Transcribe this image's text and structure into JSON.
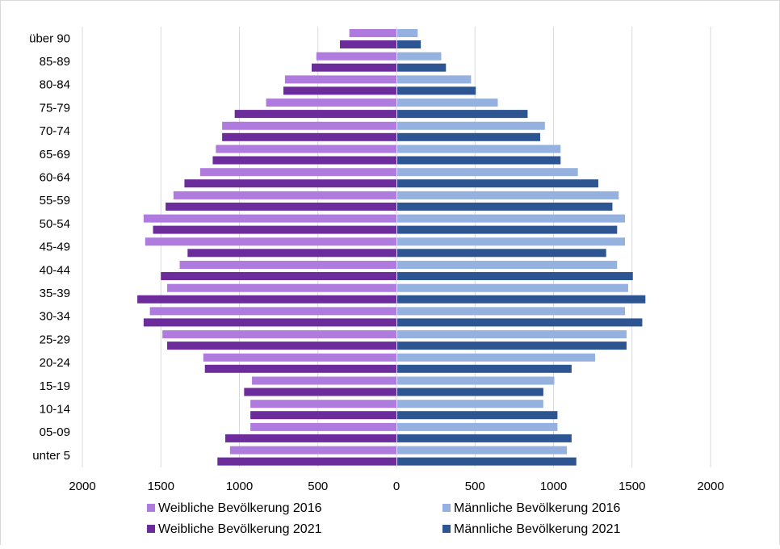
{
  "chart_data": {
    "type": "bar",
    "orientation": "horizontal-population-pyramid",
    "categories": [
      "über 90",
      "85-89",
      "80-84",
      "75-79",
      "70-74",
      "65-69",
      "60-64",
      "55-59",
      "50-54",
      "45-49",
      "40-44",
      "35-39",
      "30-34",
      "25-29",
      "20-24",
      "15-19",
      "10-14",
      "05-09",
      "unter 5"
    ],
    "series": [
      {
        "name": "Weibliche Bevölkerung 2016",
        "side": "left",
        "color": "#b07bde",
        "values": [
          300,
          510,
          710,
          830,
          1110,
          1150,
          1250,
          1420,
          1610,
          1600,
          1380,
          1460,
          1570,
          1490,
          1230,
          920,
          930,
          930,
          1060
        ]
      },
      {
        "name": "Weibliche Bevölkerung 2021",
        "side": "left",
        "color": "#6c2c9c",
        "values": [
          360,
          540,
          720,
          1030,
          1110,
          1170,
          1350,
          1470,
          1550,
          1330,
          1500,
          1650,
          1610,
          1460,
          1220,
          970,
          930,
          1090,
          1140
        ]
      },
      {
        "name": "Männliche Bevölkerung 2016",
        "side": "right",
        "color": "#95b1df",
        "values": [
          130,
          280,
          470,
          640,
          940,
          1040,
          1150,
          1410,
          1450,
          1450,
          1400,
          1470,
          1450,
          1460,
          1260,
          1000,
          930,
          1020,
          1080
        ]
      },
      {
        "name": "Männliche Bevölkerung 2021",
        "side": "right",
        "color": "#2d5592",
        "values": [
          150,
          310,
          500,
          830,
          910,
          1040,
          1280,
          1370,
          1400,
          1330,
          1500,
          1580,
          1560,
          1460,
          1110,
          930,
          1020,
          1110,
          1140
        ]
      }
    ],
    "xlim": [
      -2000,
      2000
    ],
    "xticks": [
      -2000,
      -1500,
      -1000,
      -500,
      0,
      500,
      1000,
      1500,
      2000
    ],
    "xtick_labels": [
      "2000",
      "1500",
      "1000",
      "500",
      "0",
      "500",
      "1000",
      "1500",
      "2000"
    ],
    "grid": "vertical",
    "grid_color": "#d9d9d9",
    "legend_position": "bottom",
    "title": "",
    "xlabel": "",
    "ylabel": ""
  }
}
